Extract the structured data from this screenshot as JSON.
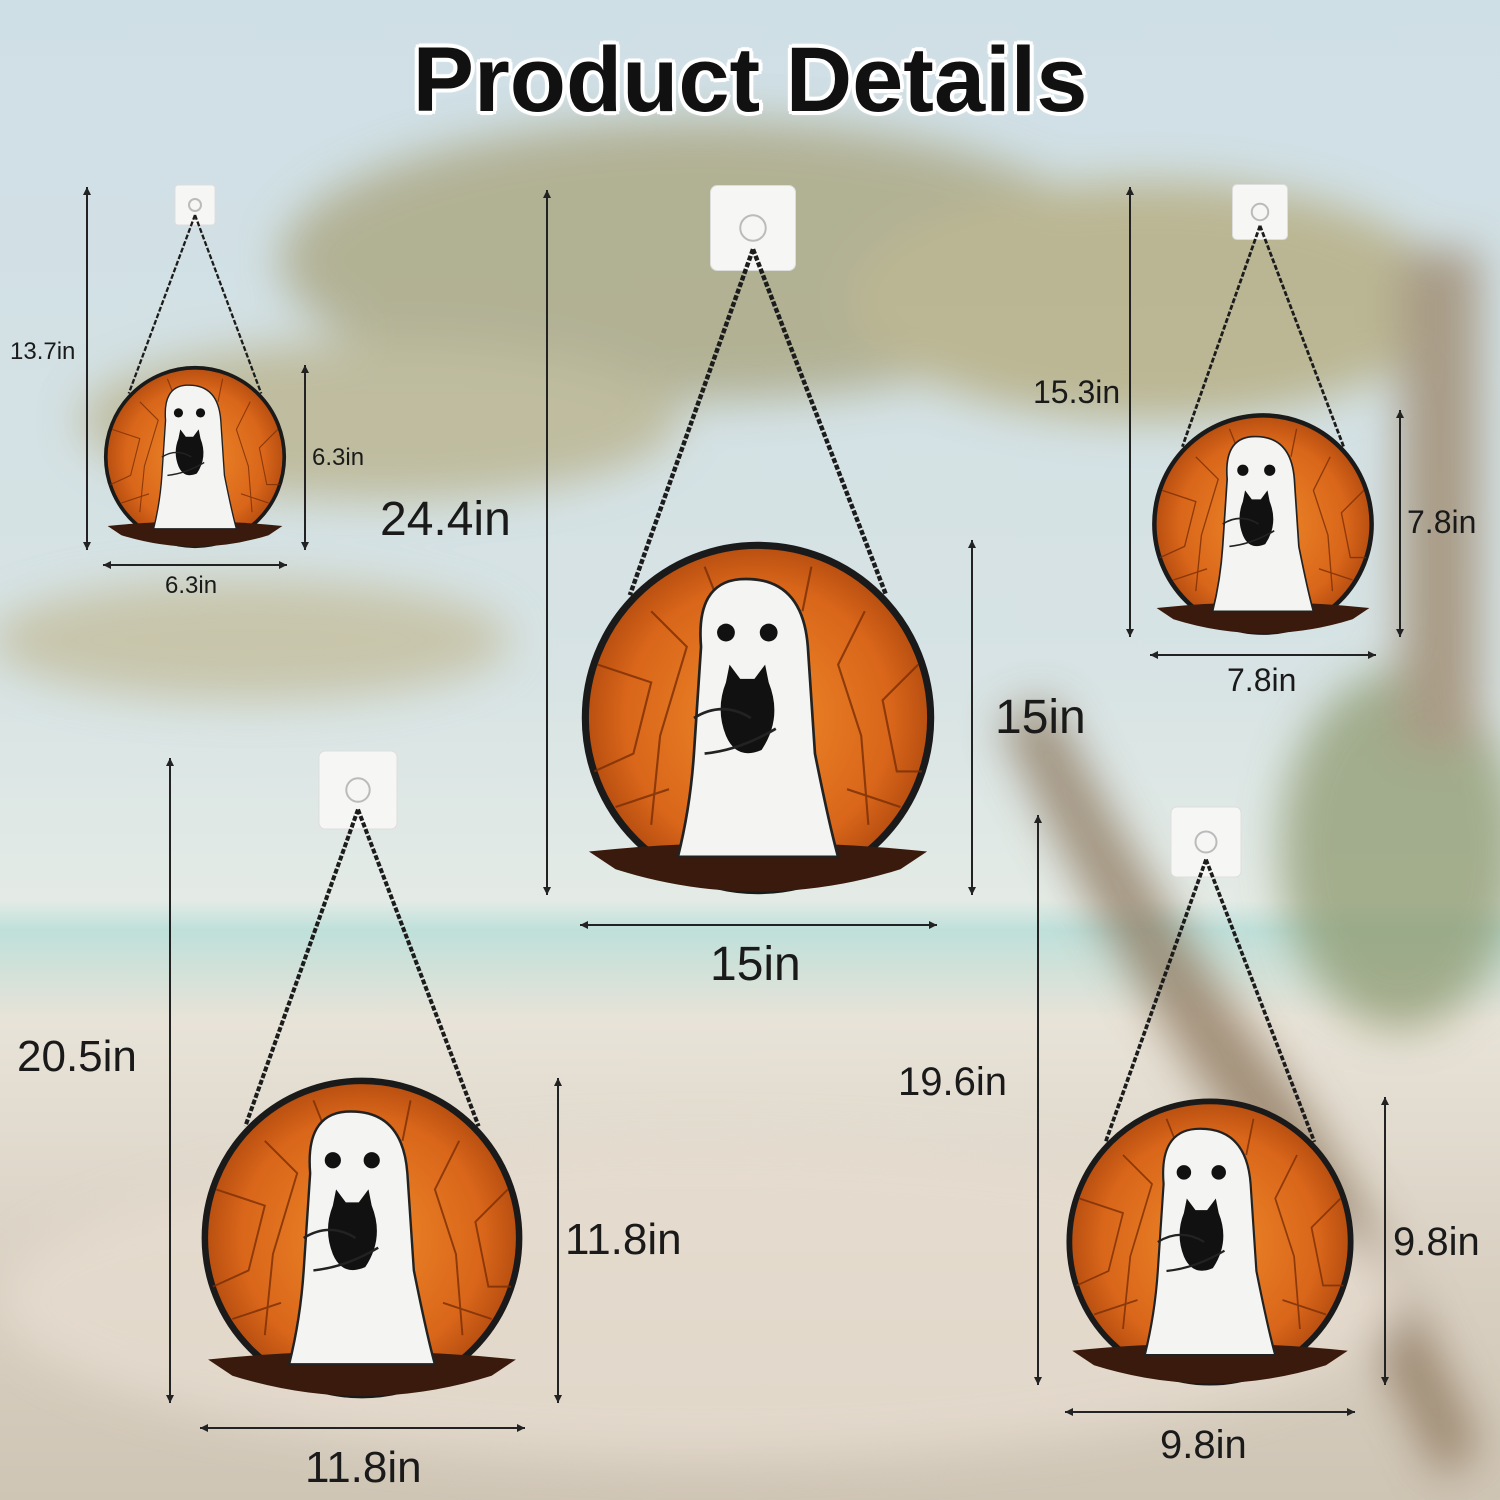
{
  "title": "Product Details",
  "colors": {
    "disc_orange": "#d9661a",
    "disc_dark": "#8a3208",
    "ghost": "#f4f4f2",
    "cat": "#111111",
    "chain": "#1c1c1c"
  },
  "products": [
    {
      "total_height": "13.7in",
      "diameter_height": "6.3in",
      "diameter_width": "6.3in"
    },
    {
      "total_height": "24.4in",
      "diameter_height": "15in",
      "diameter_width": "15in"
    },
    {
      "total_height": "15.3in",
      "diameter_height": "7.8in",
      "diameter_width": "7.8in"
    },
    {
      "total_height": "20.5in",
      "diameter_height": "11.8in",
      "diameter_width": "11.8in"
    },
    {
      "total_height": "19.6in",
      "diameter_height": "9.8in",
      "diameter_width": "9.8in"
    }
  ]
}
